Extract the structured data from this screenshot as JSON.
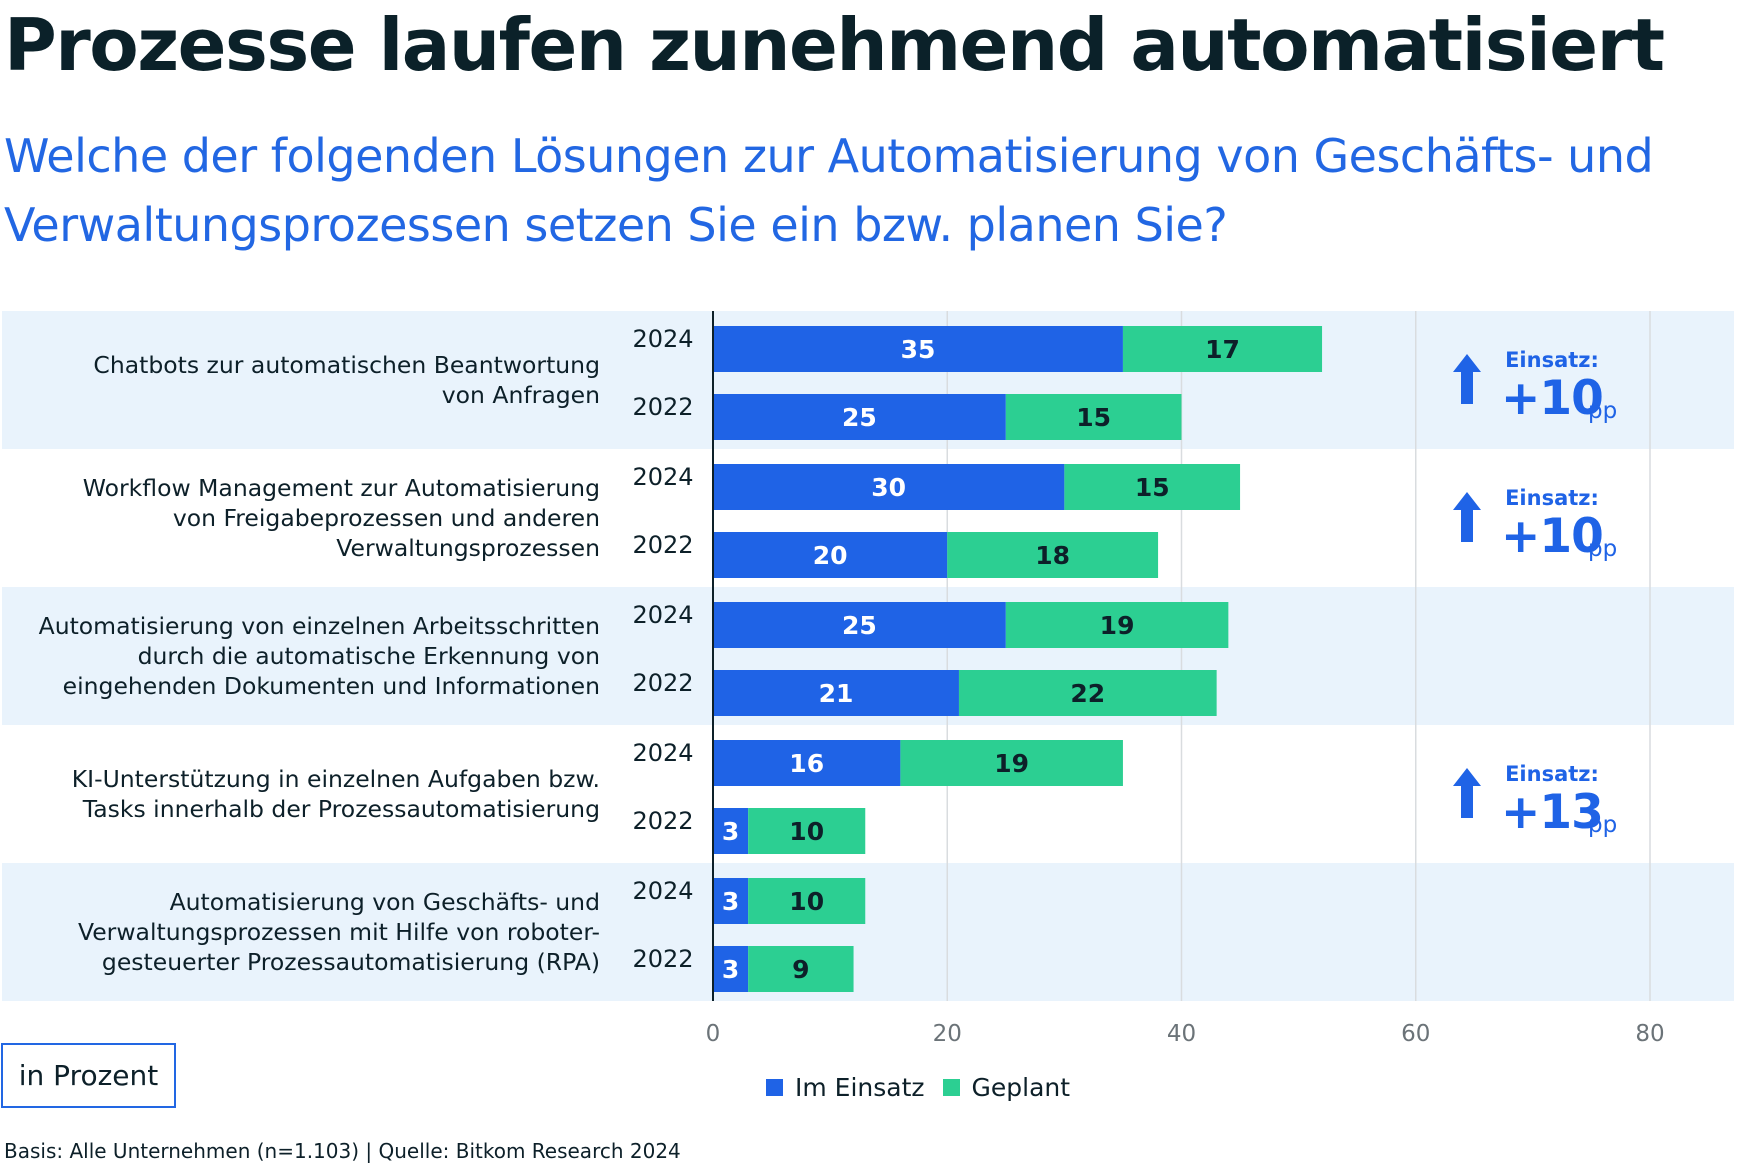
{
  "title": "Prozesse laufen zunehmend automatisiert",
  "subtitle": "Welche der folgenden Lösungen zur Automatisierung von Geschäfts- und Verwaltungsprozessen setzen Sie ein bzw. planen Sie?",
  "unit_label": "in Prozent",
  "source": "Basis: Alle Unternehmen (n=1.103) | Quelle: Bitkom Research 2024",
  "colors": {
    "im_einsatz": "#1f63e6",
    "geplant": "#2ccf92",
    "band": "#e9f3fc",
    "accent": "#1f63e6",
    "grid": "#d9dcdf",
    "axis": "#0d2029"
  },
  "chart_data": {
    "type": "bar",
    "orientation": "horizontal",
    "stacked": true,
    "xlim": [
      0,
      80
    ],
    "xticks": [
      0,
      20,
      40,
      60,
      80
    ],
    "xlabel": "",
    "ylabel": "",
    "legend": [
      {
        "name": "Im Einsatz",
        "color_key": "im_einsatz"
      },
      {
        "name": "Geplant",
        "color_key": "geplant"
      }
    ],
    "legend_position": "bottom-center",
    "categories": [
      {
        "label_lines": [
          "Chatbots zur automatischen Beantwortung",
          "von Anfragen"
        ],
        "rows": [
          {
            "year": "2024",
            "im_einsatz": 35,
            "geplant": 17
          },
          {
            "year": "2022",
            "im_einsatz": 25,
            "geplant": 15
          }
        ],
        "change": {
          "label": "Einsatz:",
          "value": "+10",
          "unit": "pp"
        }
      },
      {
        "label_lines": [
          "Workflow Management zur Automatisierung",
          "von Freigabeprozessen und anderen",
          "Verwaltungsprozessen"
        ],
        "rows": [
          {
            "year": "2024",
            "im_einsatz": 30,
            "geplant": 15
          },
          {
            "year": "2022",
            "im_einsatz": 20,
            "geplant": 18
          }
        ],
        "change": {
          "label": "Einsatz:",
          "value": "+10",
          "unit": "pp"
        }
      },
      {
        "label_lines": [
          "Automatisierung von einzelnen Arbeitsschritten",
          "durch die automatische Erkennung von",
          "eingehenden Dokumenten und Informationen"
        ],
        "rows": [
          {
            "year": "2024",
            "im_einsatz": 25,
            "geplant": 19
          },
          {
            "year": "2022",
            "im_einsatz": 21,
            "geplant": 22
          }
        ],
        "change": null
      },
      {
        "label_lines": [
          "KI-Unterstützung in einzelnen Aufgaben bzw.",
          "Tasks innerhalb der Prozessautomatisierung"
        ],
        "rows": [
          {
            "year": "2024",
            "im_einsatz": 16,
            "geplant": 19
          },
          {
            "year": "2022",
            "im_einsatz": 3,
            "geplant": 10
          }
        ],
        "change": {
          "label": "Einsatz:",
          "value": "+13",
          "unit": "pp"
        }
      },
      {
        "label_lines": [
          "Automatisierung von Geschäfts- und",
          "Verwaltungsprozessen mit Hilfe von roboter-",
          "gesteuerter Prozessautomatisierung (RPA)"
        ],
        "rows": [
          {
            "year": "2024",
            "im_einsatz": 3,
            "geplant": 10
          },
          {
            "year": "2022",
            "im_einsatz": 3,
            "geplant": 9
          }
        ],
        "change": null
      }
    ]
  }
}
